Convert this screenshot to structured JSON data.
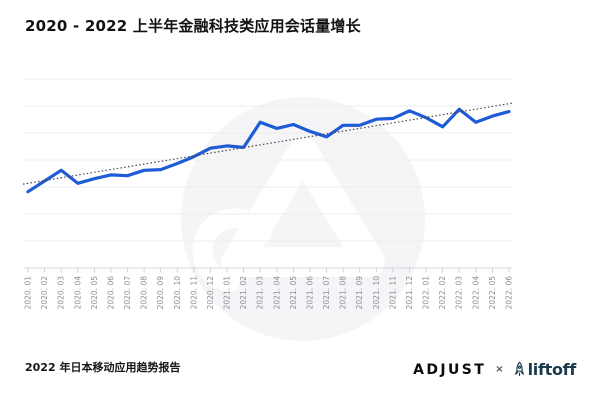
{
  "title": "2020 - 2022 上半年金融科技类应用会话量增长",
  "footer": {
    "source": "2022 年日本移动应用趋势报告",
    "adjust": "ADJUST",
    "separator": "×",
    "liftoff": "liftoff"
  },
  "icons": {
    "watermark": "adjust-logo-watermark",
    "liftoff_icon": "rocket-icon"
  },
  "colors": {
    "line": "#1e5bd6",
    "trendline": "#45454e",
    "gridline": "#ededf1",
    "axis": "#d7d7de",
    "tick": "#c9c9d1",
    "axis_label": "#8d8d95",
    "liftoff_brand": "#1b3b4d",
    "watermark_fill": "#f5f5f7"
  },
  "chart_data": {
    "type": "line",
    "title": "2020 - 2022 上半年金融科技类应用会话量增长",
    "xlabel": "",
    "ylabel": "",
    "y_axis_labels_visible": false,
    "grid": true,
    "legend": "none",
    "categories": [
      "2020. 01",
      "2020. 02",
      "2020. 03",
      "2020. 04",
      "2020. 05",
      "2020. 06",
      "2020. 07",
      "2020. 08",
      "2020. 09",
      "2020. 10",
      "2020. 11",
      "2020. 12",
      "2021. 01",
      "2021. 02",
      "2021. 03",
      "2021. 04",
      "2021. 05",
      "2021. 06",
      "2021. 07",
      "2021. 08",
      "2021. 09",
      "2021. 10",
      "2021. 11",
      "2021. 12",
      "2022. 01",
      "2022. 02",
      "2022. 03",
      "2022. 04",
      "2022. 05",
      "2022. 06"
    ],
    "values": [
      100,
      114,
      128,
      111,
      117,
      122,
      121,
      128,
      129,
      137,
      146,
      157,
      160,
      158,
      191,
      183,
      188,
      179,
      172,
      187,
      187,
      195,
      196,
      206,
      197,
      185,
      208,
      191,
      199,
      205
    ],
    "value_note": "session volume index, 2020.01 = 100 (no y-axis labels shown in chart)",
    "ylim": [
      0,
      260
    ],
    "trendline": {
      "style": "dotted",
      "start": 110,
      "end": 216
    }
  }
}
